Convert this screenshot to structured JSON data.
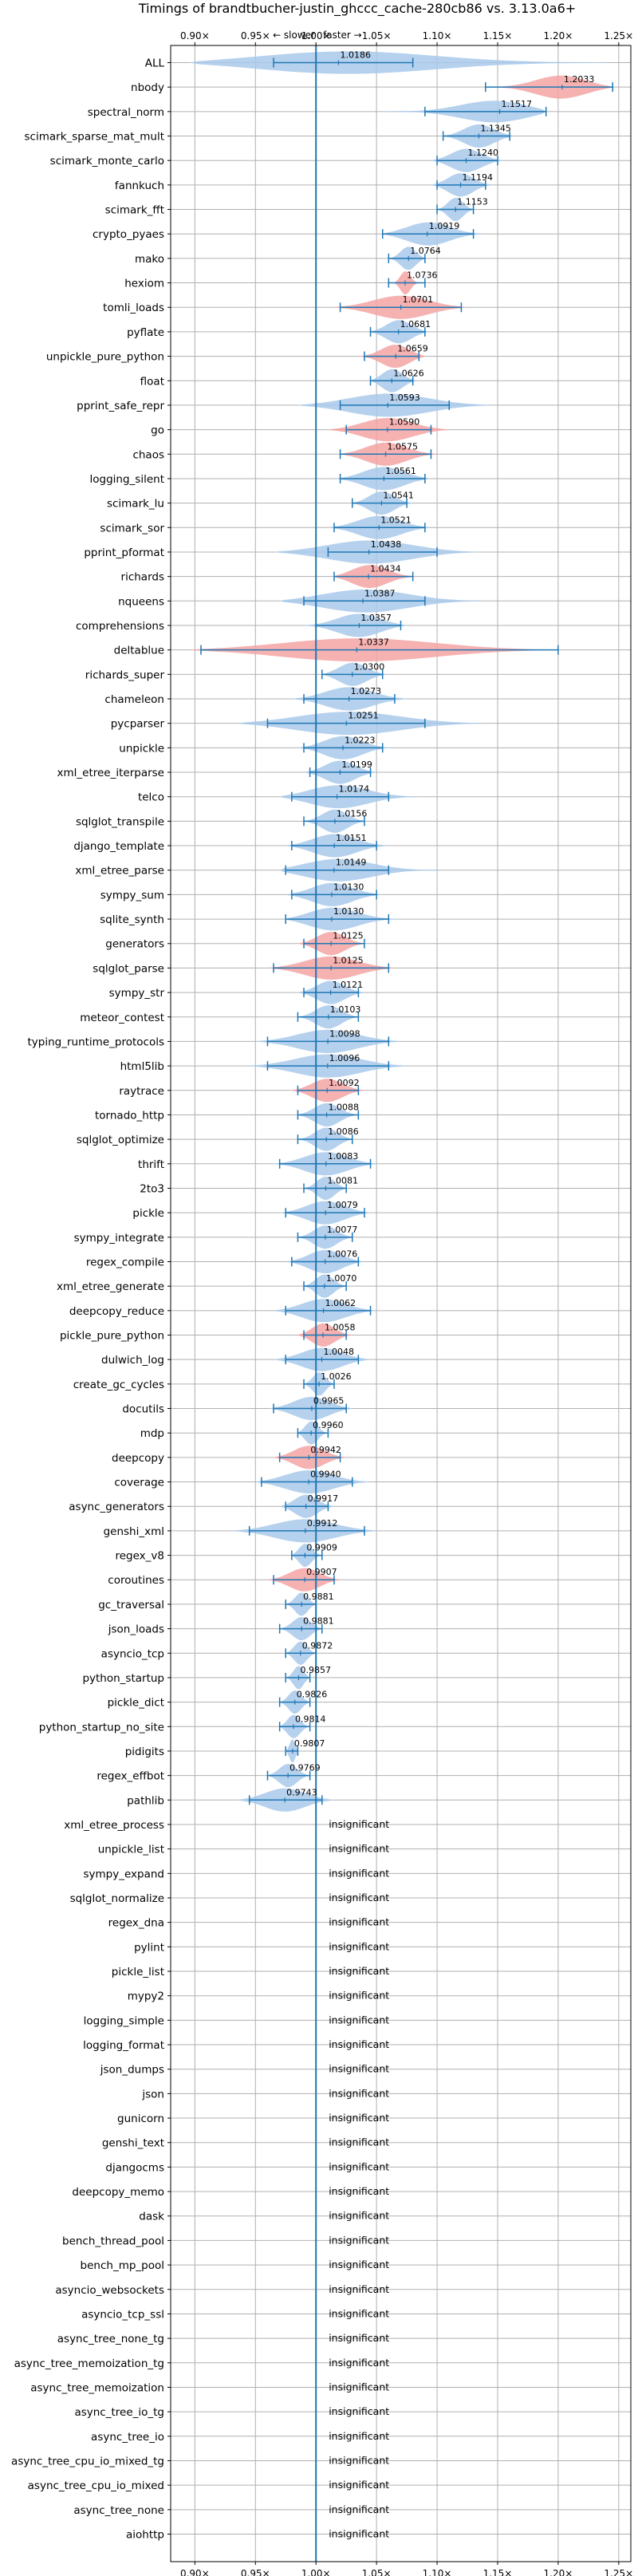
{
  "chart_data": {
    "type": "violin",
    "title": "Timings of brandtbucher-justin_ghccc_cache-280cb86 vs. 3.13.0a6+",
    "annotation_slower": "← slower",
    "annotation_faster": "faster →",
    "xlim": [
      0.88,
      1.26
    ],
    "xticks": [
      0.9,
      0.95,
      1.0,
      1.05,
      1.1,
      1.15,
      1.2,
      1.25
    ],
    "xtick_labels": [
      "0.90×",
      "0.95×",
      "1.00×",
      "1.05×",
      "1.10×",
      "1.15×",
      "1.20×",
      "1.25×"
    ],
    "reference_line": 1.0,
    "grid": true,
    "colors": {
      "faster": "#a8c9ea",
      "slower": "#f4a3a3",
      "errorbar": "#1f77b4",
      "reference": "#1f77b4",
      "grid": "#b0b0b0"
    },
    "insignificant_label": "insignificant",
    "benchmarks": [
      {
        "name": "ALL",
        "value": 1.0186,
        "lo": 0.895,
        "hi": 1.245,
        "mlo": 0.965,
        "mhi": 1.08,
        "dir": "faster"
      },
      {
        "name": "nbody",
        "value": 1.2033,
        "lo": 1.145,
        "hi": 1.245,
        "mlo": 1.14,
        "mhi": 1.245,
        "dir": "slower"
      },
      {
        "name": "spectral_norm",
        "value": 1.1517,
        "lo": 1.055,
        "hi": 1.19,
        "mlo": 1.09,
        "mhi": 1.19,
        "dir": "faster"
      },
      {
        "name": "scimark_sparse_mat_mult",
        "value": 1.1345,
        "lo": 1.105,
        "hi": 1.165,
        "mlo": 1.105,
        "mhi": 1.16,
        "dir": "faster"
      },
      {
        "name": "scimark_monte_carlo",
        "value": 1.124,
        "lo": 1.095,
        "hi": 1.155,
        "mlo": 1.1,
        "mhi": 1.15,
        "dir": "faster"
      },
      {
        "name": "fannkuch",
        "value": 1.1194,
        "lo": 1.095,
        "hi": 1.145,
        "mlo": 1.1,
        "mhi": 1.14,
        "dir": "faster"
      },
      {
        "name": "scimark_fft",
        "value": 1.1153,
        "lo": 1.1,
        "hi": 1.13,
        "mlo": 1.1,
        "mhi": 1.13,
        "dir": "faster"
      },
      {
        "name": "crypto_pyaes",
        "value": 1.0919,
        "lo": 1.055,
        "hi": 1.14,
        "mlo": 1.055,
        "mhi": 1.13,
        "dir": "faster"
      },
      {
        "name": "mako",
        "value": 1.0764,
        "lo": 1.06,
        "hi": 1.09,
        "mlo": 1.06,
        "mhi": 1.09,
        "dir": "faster"
      },
      {
        "name": "hexiom",
        "value": 1.0736,
        "lo": 1.065,
        "hi": 1.085,
        "mlo": 1.06,
        "mhi": 1.09,
        "dir": "slower"
      },
      {
        "name": "tomli_loads",
        "value": 1.0701,
        "lo": 1.015,
        "hi": 1.125,
        "mlo": 1.02,
        "mhi": 1.12,
        "dir": "slower"
      },
      {
        "name": "pyflate",
        "value": 1.0681,
        "lo": 1.045,
        "hi": 1.095,
        "mlo": 1.045,
        "mhi": 1.09,
        "dir": "faster"
      },
      {
        "name": "unpickle_pure_python",
        "value": 1.0659,
        "lo": 1.035,
        "hi": 1.09,
        "mlo": 1.04,
        "mhi": 1.085,
        "dir": "slower"
      },
      {
        "name": "float",
        "value": 1.0626,
        "lo": 1.045,
        "hi": 1.085,
        "mlo": 1.045,
        "mhi": 1.08,
        "dir": "faster"
      },
      {
        "name": "pprint_safe_repr",
        "value": 1.0593,
        "lo": 0.985,
        "hi": 1.145,
        "mlo": 1.02,
        "mhi": 1.11,
        "dir": "faster"
      },
      {
        "name": "go",
        "value": 1.059,
        "lo": 1.01,
        "hi": 1.11,
        "mlo": 1.025,
        "mhi": 1.095,
        "dir": "slower"
      },
      {
        "name": "chaos",
        "value": 1.0575,
        "lo": 1.02,
        "hi": 1.1,
        "mlo": 1.02,
        "mhi": 1.095,
        "dir": "slower"
      },
      {
        "name": "logging_silent",
        "value": 1.0561,
        "lo": 1.015,
        "hi": 1.095,
        "mlo": 1.02,
        "mhi": 1.09,
        "dir": "faster"
      },
      {
        "name": "scimark_lu",
        "value": 1.0541,
        "lo": 1.03,
        "hi": 1.08,
        "mlo": 1.03,
        "mhi": 1.075,
        "dir": "faster"
      },
      {
        "name": "scimark_sor",
        "value": 1.0521,
        "lo": 1.01,
        "hi": 1.095,
        "mlo": 1.015,
        "mhi": 1.09,
        "dir": "faster"
      },
      {
        "name": "pprint_pformat",
        "value": 1.0438,
        "lo": 0.965,
        "hi": 1.135,
        "mlo": 1.01,
        "mhi": 1.1,
        "dir": "faster"
      },
      {
        "name": "richards",
        "value": 1.0434,
        "lo": 1.015,
        "hi": 1.085,
        "mlo": 1.015,
        "mhi": 1.08,
        "dir": "slower"
      },
      {
        "name": "nqueens",
        "value": 1.0387,
        "lo": 0.97,
        "hi": 1.14,
        "mlo": 0.99,
        "mhi": 1.09,
        "dir": "faster"
      },
      {
        "name": "comprehensions",
        "value": 1.0357,
        "lo": 0.99,
        "hi": 1.075,
        "mlo": 1.0,
        "mhi": 1.07,
        "dir": "faster"
      },
      {
        "name": "deltablue",
        "value": 1.0337,
        "lo": 0.895,
        "hi": 1.2,
        "mlo": 0.905,
        "mhi": 1.2,
        "dir": "slower"
      },
      {
        "name": "richards_super",
        "value": 1.03,
        "lo": 1.005,
        "hi": 1.06,
        "mlo": 1.005,
        "mhi": 1.055,
        "dir": "faster"
      },
      {
        "name": "chameleon",
        "value": 1.0273,
        "lo": 0.98,
        "hi": 1.075,
        "mlo": 0.99,
        "mhi": 1.065,
        "dir": "faster"
      },
      {
        "name": "pycparser",
        "value": 1.0251,
        "lo": 0.935,
        "hi": 1.14,
        "mlo": 0.96,
        "mhi": 1.09,
        "dir": "faster"
      },
      {
        "name": "unpickle",
        "value": 1.0223,
        "lo": 0.985,
        "hi": 1.06,
        "mlo": 0.99,
        "mhi": 1.055,
        "dir": "faster"
      },
      {
        "name": "xml_etree_iterparse",
        "value": 1.0199,
        "lo": 0.99,
        "hi": 1.05,
        "mlo": 0.995,
        "mhi": 1.045,
        "dir": "faster"
      },
      {
        "name": "telco",
        "value": 1.0174,
        "lo": 0.97,
        "hi": 1.085,
        "mlo": 0.98,
        "mhi": 1.06,
        "dir": "faster"
      },
      {
        "name": "sqlglot_transpile",
        "value": 1.0156,
        "lo": 0.99,
        "hi": 1.04,
        "mlo": 0.99,
        "mhi": 1.04,
        "dir": "faster"
      },
      {
        "name": "django_template",
        "value": 1.0151,
        "lo": 0.975,
        "hi": 1.06,
        "mlo": 0.98,
        "mhi": 1.05,
        "dir": "faster"
      },
      {
        "name": "xml_etree_parse",
        "value": 1.0149,
        "lo": 0.97,
        "hi": 1.105,
        "mlo": 0.975,
        "mhi": 1.06,
        "dir": "faster"
      },
      {
        "name": "sympy_sum",
        "value": 1.013,
        "lo": 0.975,
        "hi": 1.055,
        "mlo": 0.98,
        "mhi": 1.05,
        "dir": "faster"
      },
      {
        "name": "sqlite_synth",
        "value": 1.013,
        "lo": 0.975,
        "hi": 1.07,
        "mlo": 0.975,
        "mhi": 1.06,
        "dir": "faster"
      },
      {
        "name": "generators",
        "value": 1.0125,
        "lo": 0.985,
        "hi": 1.04,
        "mlo": 0.99,
        "mhi": 1.04,
        "dir": "slower"
      },
      {
        "name": "sqlglot_parse",
        "value": 1.0125,
        "lo": 0.96,
        "hi": 1.065,
        "mlo": 0.965,
        "mhi": 1.06,
        "dir": "slower"
      },
      {
        "name": "sympy_str",
        "value": 1.0121,
        "lo": 0.985,
        "hi": 1.04,
        "mlo": 0.99,
        "mhi": 1.035,
        "dir": "faster"
      },
      {
        "name": "meteor_contest",
        "value": 1.0103,
        "lo": 0.985,
        "hi": 1.035,
        "mlo": 0.985,
        "mhi": 1.035,
        "dir": "faster"
      },
      {
        "name": "typing_runtime_protocols",
        "value": 1.0098,
        "lo": 0.95,
        "hi": 1.07,
        "mlo": 0.96,
        "mhi": 1.06,
        "dir": "faster"
      },
      {
        "name": "html5lib",
        "value": 1.0096,
        "lo": 0.945,
        "hi": 1.075,
        "mlo": 0.96,
        "mhi": 1.06,
        "dir": "faster"
      },
      {
        "name": "raytrace",
        "value": 1.0092,
        "lo": 0.98,
        "hi": 1.04,
        "mlo": 0.985,
        "mhi": 1.035,
        "dir": "slower"
      },
      {
        "name": "tornado_http",
        "value": 1.0088,
        "lo": 0.985,
        "hi": 1.035,
        "mlo": 0.985,
        "mhi": 1.035,
        "dir": "faster"
      },
      {
        "name": "sqlglot_optimize",
        "value": 1.0086,
        "lo": 0.985,
        "hi": 1.03,
        "mlo": 0.985,
        "mhi": 1.03,
        "dir": "faster"
      },
      {
        "name": "thrift",
        "value": 1.0083,
        "lo": 0.965,
        "hi": 1.05,
        "mlo": 0.97,
        "mhi": 1.045,
        "dir": "faster"
      },
      {
        "name": "2to3",
        "value": 1.0081,
        "lo": 0.99,
        "hi": 1.025,
        "mlo": 0.99,
        "mhi": 1.025,
        "dir": "faster"
      },
      {
        "name": "pickle",
        "value": 1.0079,
        "lo": 0.97,
        "hi": 1.045,
        "mlo": 0.975,
        "mhi": 1.04,
        "dir": "faster"
      },
      {
        "name": "sympy_integrate",
        "value": 1.0077,
        "lo": 0.985,
        "hi": 1.03,
        "mlo": 0.985,
        "mhi": 1.03,
        "dir": "faster"
      },
      {
        "name": "regex_compile",
        "value": 1.0076,
        "lo": 0.975,
        "hi": 1.04,
        "mlo": 0.98,
        "mhi": 1.035,
        "dir": "faster"
      },
      {
        "name": "xml_etree_generate",
        "value": 1.007,
        "lo": 0.99,
        "hi": 1.025,
        "mlo": 0.99,
        "mhi": 1.025,
        "dir": "faster"
      },
      {
        "name": "deepcopy_reduce",
        "value": 1.0062,
        "lo": 0.965,
        "hi": 1.05,
        "mlo": 0.975,
        "mhi": 1.045,
        "dir": "faster"
      },
      {
        "name": "pickle_pure_python",
        "value": 1.0058,
        "lo": 0.985,
        "hi": 1.03,
        "mlo": 0.99,
        "mhi": 1.025,
        "dir": "slower"
      },
      {
        "name": "dulwich_log",
        "value": 1.0048,
        "lo": 0.965,
        "hi": 1.045,
        "mlo": 0.975,
        "mhi": 1.035,
        "dir": "faster"
      },
      {
        "name": "create_gc_cycles",
        "value": 1.0026,
        "lo": 0.99,
        "hi": 1.015,
        "mlo": 0.99,
        "mhi": 1.015,
        "dir": "faster"
      },
      {
        "name": "docutils",
        "value": 0.9965,
        "lo": 0.96,
        "hi": 1.03,
        "mlo": 0.965,
        "mhi": 1.025,
        "dir": "faster"
      },
      {
        "name": "mdp",
        "value": 0.996,
        "lo": 0.985,
        "hi": 1.01,
        "mlo": 0.985,
        "mhi": 1.01,
        "dir": "faster"
      },
      {
        "name": "deepcopy",
        "value": 0.9942,
        "lo": 0.965,
        "hi": 1.025,
        "mlo": 0.97,
        "mhi": 1.02,
        "dir": "slower"
      },
      {
        "name": "coverage",
        "value": 0.994,
        "lo": 0.95,
        "hi": 1.045,
        "mlo": 0.955,
        "mhi": 1.03,
        "dir": "faster"
      },
      {
        "name": "async_generators",
        "value": 0.9917,
        "lo": 0.97,
        "hi": 1.015,
        "mlo": 0.975,
        "mhi": 1.01,
        "dir": "faster"
      },
      {
        "name": "genshi_xml",
        "value": 0.9912,
        "lo": 0.93,
        "hi": 1.05,
        "mlo": 0.945,
        "mhi": 1.04,
        "dir": "faster"
      },
      {
        "name": "regex_v8",
        "value": 0.9909,
        "lo": 0.98,
        "hi": 1.005,
        "mlo": 0.98,
        "mhi": 1.005,
        "dir": "faster"
      },
      {
        "name": "coroutines",
        "value": 0.9907,
        "lo": 0.96,
        "hi": 1.02,
        "mlo": 0.965,
        "mhi": 1.015,
        "dir": "slower"
      },
      {
        "name": "gc_traversal",
        "value": 0.9881,
        "lo": 0.975,
        "hi": 1.0,
        "mlo": 0.975,
        "mhi": 1.0,
        "dir": "faster"
      },
      {
        "name": "json_loads",
        "value": 0.9881,
        "lo": 0.97,
        "hi": 1.005,
        "mlo": 0.97,
        "mhi": 1.005,
        "dir": "faster"
      },
      {
        "name": "asyncio_tcp",
        "value": 0.9872,
        "lo": 0.975,
        "hi": 1.0,
        "mlo": 0.975,
        "mhi": 1.0,
        "dir": "faster"
      },
      {
        "name": "python_startup",
        "value": 0.9857,
        "lo": 0.975,
        "hi": 0.995,
        "mlo": 0.975,
        "mhi": 0.995,
        "dir": "faster"
      },
      {
        "name": "pickle_dict",
        "value": 0.9826,
        "lo": 0.97,
        "hi": 0.995,
        "mlo": 0.97,
        "mhi": 0.995,
        "dir": "faster"
      },
      {
        "name": "python_startup_no_site",
        "value": 0.9814,
        "lo": 0.97,
        "hi": 0.995,
        "mlo": 0.97,
        "mhi": 0.995,
        "dir": "faster"
      },
      {
        "name": "pidigits",
        "value": 0.9807,
        "lo": 0.975,
        "hi": 0.985,
        "mlo": 0.975,
        "mhi": 0.985,
        "dir": "faster"
      },
      {
        "name": "regex_effbot",
        "value": 0.9769,
        "lo": 0.96,
        "hi": 0.995,
        "mlo": 0.96,
        "mhi": 0.995,
        "dir": "faster"
      },
      {
        "name": "pathlib",
        "value": 0.9743,
        "lo": 0.935,
        "hi": 1.015,
        "mlo": 0.945,
        "mhi": 1.005,
        "dir": "faster"
      },
      {
        "name": "xml_etree_process",
        "value": null
      },
      {
        "name": "unpickle_list",
        "value": null
      },
      {
        "name": "sympy_expand",
        "value": null
      },
      {
        "name": "sqlglot_normalize",
        "value": null
      },
      {
        "name": "regex_dna",
        "value": null
      },
      {
        "name": "pylint",
        "value": null
      },
      {
        "name": "pickle_list",
        "value": null
      },
      {
        "name": "mypy2",
        "value": null
      },
      {
        "name": "logging_simple",
        "value": null
      },
      {
        "name": "logging_format",
        "value": null
      },
      {
        "name": "json_dumps",
        "value": null
      },
      {
        "name": "json",
        "value": null
      },
      {
        "name": "gunicorn",
        "value": null
      },
      {
        "name": "genshi_text",
        "value": null
      },
      {
        "name": "djangocms",
        "value": null
      },
      {
        "name": "deepcopy_memo",
        "value": null
      },
      {
        "name": "dask",
        "value": null
      },
      {
        "name": "bench_thread_pool",
        "value": null
      },
      {
        "name": "bench_mp_pool",
        "value": null
      },
      {
        "name": "asyncio_websockets",
        "value": null
      },
      {
        "name": "asyncio_tcp_ssl",
        "value": null
      },
      {
        "name": "async_tree_none_tg",
        "value": null
      },
      {
        "name": "async_tree_memoization_tg",
        "value": null
      },
      {
        "name": "async_tree_memoization",
        "value": null
      },
      {
        "name": "async_tree_io_tg",
        "value": null
      },
      {
        "name": "async_tree_io",
        "value": null
      },
      {
        "name": "async_tree_cpu_io_mixed_tg",
        "value": null
      },
      {
        "name": "async_tree_cpu_io_mixed",
        "value": null
      },
      {
        "name": "async_tree_none",
        "value": null
      },
      {
        "name": "aiohttp",
        "value": null
      }
    ]
  }
}
